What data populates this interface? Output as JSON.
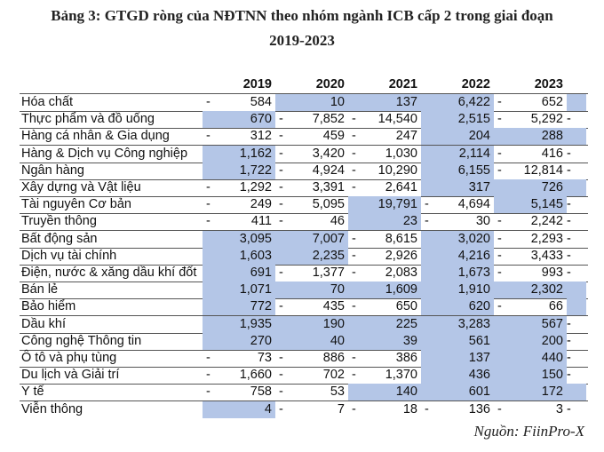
{
  "header": {
    "title_line1": "Bảng 3: GTGD ròng của NĐTNN theo nhóm ngành ICB cấp 2 trong giai đoạn",
    "title_line2": "2019-2023"
  },
  "table": {
    "columns": [
      "2019",
      "2020",
      "2021",
      "2022",
      "2023"
    ],
    "rows": [
      {
        "label": "Hóa chất",
        "cells": [
          [
            "-",
            "584"
          ],
          [
            "10"
          ],
          [
            "137"
          ],
          [
            "6,422"
          ],
          [
            "-",
            "652"
          ]
        ],
        "edge": null
      },
      {
        "label": "Thực phẩm và đồ uống",
        "cells": [
          [
            "670"
          ],
          [
            "-",
            "7,852"
          ],
          [
            "-",
            "14,540"
          ],
          [
            "2,515"
          ],
          [
            "-",
            "5,292"
          ]
        ],
        "edge": "-"
      },
      {
        "label": "Hàng cá nhân & Gia dụng",
        "cells": [
          [
            "-",
            "312"
          ],
          [
            "-",
            "459"
          ],
          [
            "-",
            "247"
          ],
          [
            "204"
          ],
          [
            "288"
          ]
        ],
        "edge": null
      },
      {
        "label": "Hàng & Dịch vụ Công nghiệp",
        "cells": [
          [
            "1,162"
          ],
          [
            "-",
            "3,420"
          ],
          [
            "-",
            "1,030"
          ],
          [
            "2,114"
          ],
          [
            "-",
            "416"
          ]
        ],
        "edge": "-"
      },
      {
        "label": "Ngân hàng",
        "cells": [
          [
            "1,722"
          ],
          [
            "-",
            "4,924"
          ],
          [
            "-",
            "10,290"
          ],
          [
            "6,155"
          ],
          [
            "-",
            "12,814"
          ]
        ],
        "edge": "-"
      },
      {
        "label": "Xây dựng và Vật liệu",
        "cells": [
          [
            "-",
            "1,292"
          ],
          [
            "-",
            "3,391"
          ],
          [
            "-",
            "2,641"
          ],
          [
            "317"
          ],
          [
            "726"
          ]
        ],
        "edge": null
      },
      {
        "label": "Tài nguyên Cơ bản",
        "cells": [
          [
            "-",
            "249"
          ],
          [
            "-",
            "5,095"
          ],
          [
            "19,791"
          ],
          [
            "-",
            "4,694"
          ],
          [
            "5,145"
          ]
        ],
        "edge": "-"
      },
      {
        "label": "Truyền thông",
        "cells": [
          [
            "-",
            "411"
          ],
          [
            "-",
            "46"
          ],
          [
            "23"
          ],
          [
            "-",
            "30"
          ],
          [
            "-",
            "2,242"
          ]
        ],
        "edge": "-"
      },
      {
        "label": "Bất động sản",
        "cells": [
          [
            "3,095"
          ],
          [
            "7,007"
          ],
          [
            "-",
            "8,615"
          ],
          [
            "3,020"
          ],
          [
            "-",
            "2,293"
          ]
        ],
        "edge": "-"
      },
      {
        "label": "Dịch vụ tài chính",
        "cells": [
          [
            "1,603"
          ],
          [
            "2,235"
          ],
          [
            "-",
            "2,926"
          ],
          [
            "4,216"
          ],
          [
            "-",
            "3,433"
          ]
        ],
        "edge": "-"
      },
      {
        "label": "Điện, nước & xăng dầu khí đốt",
        "cells": [
          [
            "691"
          ],
          [
            "-",
            "1,377"
          ],
          [
            "-",
            "2,083"
          ],
          [
            "1,673"
          ],
          [
            "-",
            "993"
          ]
        ],
        "edge": "-"
      },
      {
        "label": "Bán lẻ",
        "cells": [
          [
            "1,071"
          ],
          [
            "70"
          ],
          [
            "1,609"
          ],
          [
            "1,910"
          ],
          [
            "2,302"
          ]
        ],
        "edge": null
      },
      {
        "label": "Bảo hiểm",
        "cells": [
          [
            "772"
          ],
          [
            "-",
            "435"
          ],
          [
            "-",
            "650"
          ],
          [
            "620"
          ],
          [
            "-",
            "66"
          ]
        ],
        "edge": null
      },
      {
        "label": "Dầu khí",
        "cells": [
          [
            "1,935"
          ],
          [
            "190"
          ],
          [
            "225"
          ],
          [
            "3,283"
          ],
          [
            "567"
          ]
        ],
        "edge": "-"
      },
      {
        "label": "Công nghệ Thông tin",
        "cells": [
          [
            "270"
          ],
          [
            "40"
          ],
          [
            "39"
          ],
          [
            "561"
          ],
          [
            "200"
          ]
        ],
        "edge": "-"
      },
      {
        "label": "Ô tô và phụ tùng",
        "cells": [
          [
            "-",
            "73"
          ],
          [
            "-",
            "886"
          ],
          [
            "-",
            "386"
          ],
          [
            "137"
          ],
          [
            "440"
          ]
        ],
        "edge": "-"
      },
      {
        "label": "Du lịch và Giải trí",
        "cells": [
          [
            "-",
            "1,660"
          ],
          [
            "-",
            "702"
          ],
          [
            "-",
            "1,370"
          ],
          [
            "436"
          ],
          [
            "150"
          ]
        ],
        "edge": "-"
      },
      {
        "label": "Y tế",
        "cells": [
          [
            "-",
            "758"
          ],
          [
            "-",
            "53"
          ],
          [
            "140"
          ],
          [
            "601"
          ],
          [
            "172"
          ]
        ],
        "edge": null
      },
      {
        "label": "Viễn thông",
        "cells": [
          [
            "4"
          ],
          [
            "-",
            "7"
          ],
          [
            "-",
            "18"
          ],
          [
            "-",
            "136"
          ],
          [
            "-",
            "3"
          ]
        ],
        "edge": "-"
      }
    ]
  },
  "footer": {
    "source": "Nguồn: FiinPro-X"
  }
}
